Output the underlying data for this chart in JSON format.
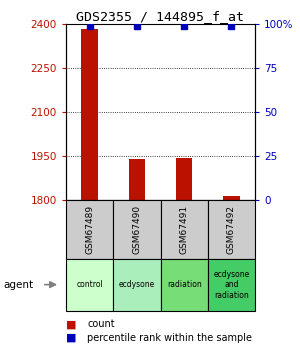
{
  "title": "GDS2355 / 144895_f_at",
  "samples": [
    "GSM67489",
    "GSM67490",
    "GSM67491",
    "GSM67492"
  ],
  "agents": [
    "control",
    "ecdysone",
    "radiation",
    "ecdysone\nand\nradiation"
  ],
  "count_values": [
    2385,
    1940,
    1942,
    1815
  ],
  "percentile_values": [
    99,
    99,
    99,
    99
  ],
  "ylim_left": [
    1800,
    2400
  ],
  "ylim_right": [
    0,
    100
  ],
  "yticks_left": [
    1800,
    1950,
    2100,
    2250,
    2400
  ],
  "yticks_right": [
    0,
    25,
    50,
    75,
    100
  ],
  "bar_color": "#bb1100",
  "dot_color": "#0000bb",
  "bar_width": 0.35,
  "sample_box_color": "#cccccc",
  "agent_box_colors": [
    "#ccffcc",
    "#aaeebb",
    "#77dd77",
    "#44cc66"
  ]
}
